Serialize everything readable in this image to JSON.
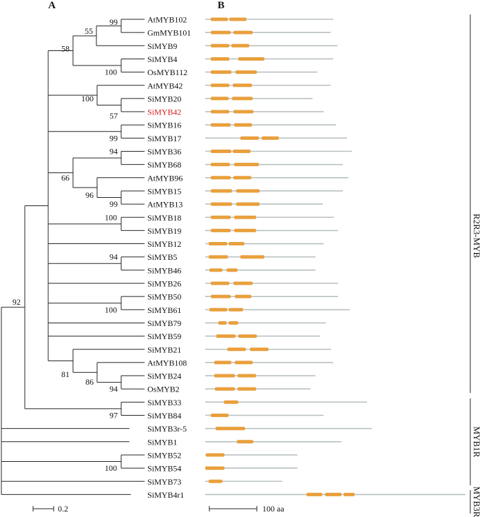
{
  "panels": {
    "a": "A",
    "b": "B"
  },
  "accent_color": "#e9a03d",
  "protein_line_color": "#b8c0c0",
  "highlight_color": "#d42020",
  "highlighted_taxon": "SiMYB42",
  "taxa": [
    "AtMYB102",
    "GmMYB101",
    "SiMYB9",
    "SiMYB4",
    "OsMYB112",
    "AtMYB42",
    "SiMYB20",
    "SiMYB42",
    "SiMYB16",
    "SiMYB17",
    "SiMYB36",
    "SiMYB68",
    "AtMYB96",
    "SiMYB15",
    "AtMYB13",
    "SiMYB18",
    "SiMYB19",
    "SiMYB12",
    "SiMYB5",
    "SiMYB46",
    "SiMYB26",
    "SiMYB50",
    "SiMYB61",
    "SiMYB79",
    "SiMYB59",
    "SiMYB21",
    "AtMYB108",
    "SiMYB24",
    "OsMYB2",
    "SiMYB33",
    "SiMYB84",
    "SiMYB3r-5",
    "SiMYB1",
    "SiMYB52",
    "SiMYB54",
    "SiMYB73",
    "SiMYB4r1"
  ],
  "bootstrap_values": [
    "99",
    "55",
    "58",
    "100",
    "100",
    "57",
    "99",
    "94",
    "66",
    "96",
    "99",
    "100",
    "94",
    "100",
    "81",
    "86",
    "94",
    "97",
    "100",
    "92"
  ],
  "groups": [
    "R2R3-MYB",
    "MYB1R",
    "MYB3R"
  ],
  "scale_bars": {
    "tree": "0.2",
    "protein": "100 aa"
  }
}
